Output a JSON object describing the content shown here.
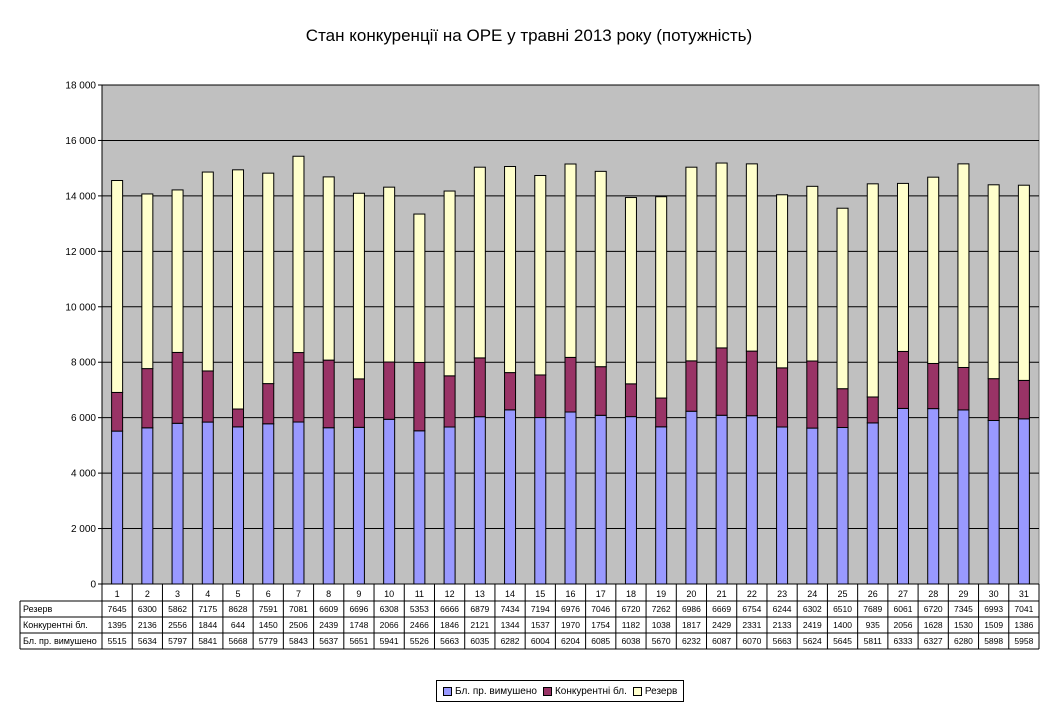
{
  "chart_data": {
    "type": "bar",
    "stacked": true,
    "title": "Стан конкуренції на ОРЕ  у травні 2013 року (потужність)",
    "ylim": [
      0,
      18000
    ],
    "ytick_step": 2000,
    "ytick_labels": [
      "0",
      "2 000",
      "4 000",
      "6 000",
      "8 000",
      "10 000",
      "12 000",
      "14 000",
      "16 000",
      "18 000"
    ],
    "grid": true,
    "legend_position": "bottom",
    "data_table": true,
    "plot_background": "#c0c0c0",
    "categories": [
      "1",
      "2",
      "3",
      "4",
      "5",
      "6",
      "7",
      "8",
      "9",
      "10",
      "11",
      "12",
      "13",
      "14",
      "15",
      "16",
      "17",
      "18",
      "19",
      "20",
      "21",
      "22",
      "23",
      "24",
      "25",
      "26",
      "27",
      "28",
      "29",
      "30",
      "31"
    ],
    "series": [
      {
        "name": "Бл. пр. вимушено",
        "color": "#9999ff",
        "values": [
          5515,
          5634,
          5797,
          5841,
          5668,
          5779,
          5843,
          5637,
          5651,
          5941,
          5526,
          5663,
          6035,
          6282,
          6004,
          6204,
          6085,
          6038,
          5670,
          6232,
          6087,
          6070,
          5663,
          5624,
          5645,
          5811,
          6333,
          6327,
          6280,
          5898,
          5958
        ]
      },
      {
        "name": "Конкурентні бл.",
        "color": "#993366",
        "values": [
          1395,
          2136,
          2556,
          1844,
          644,
          1450,
          2506,
          2439,
          1748,
          2066,
          2466,
          1846,
          2121,
          1344,
          1537,
          1970,
          1754,
          1182,
          1038,
          1817,
          2429,
          2331,
          2133,
          2419,
          1400,
          935,
          2056,
          1628,
          1530,
          1509,
          1386
        ]
      },
      {
        "name": "Резерв",
        "color": "#ffffcc",
        "values": [
          7645,
          6300,
          5862,
          7175,
          8628,
          7591,
          7081,
          6609,
          6696,
          6308,
          5353,
          6666,
          6879,
          7434,
          7194,
          6976,
          7046,
          6720,
          7262,
          6986,
          6669,
          6754,
          6244,
          6302,
          6510,
          7689,
          6061,
          6720,
          7345,
          6993,
          7041
        ]
      }
    ],
    "table_row_order": [
      2,
      1,
      0
    ]
  }
}
